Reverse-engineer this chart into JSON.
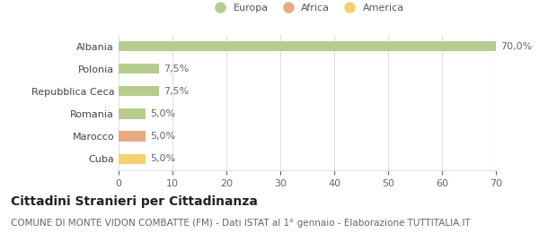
{
  "categories": [
    "Albania",
    "Polonia",
    "Repubblica Ceca",
    "Romania",
    "Marocco",
    "Cuba"
  ],
  "values": [
    70.0,
    7.5,
    7.5,
    5.0,
    5.0,
    5.0
  ],
  "bar_colors": [
    "#b5cc8e",
    "#b5cc8e",
    "#b5cc8e",
    "#b5cc8e",
    "#e8aa80",
    "#f5d06e"
  ],
  "bar_labels": [
    "70,0%",
    "7,5%",
    "7,5%",
    "5,0%",
    "5,0%",
    "5,0%"
  ],
  "legend_labels": [
    "Europa",
    "Africa",
    "America"
  ],
  "legend_colors": [
    "#b5cc8e",
    "#e8aa80",
    "#f5d06e"
  ],
  "title": "Cittadini Stranieri per Cittadinanza",
  "subtitle": "COMUNE DI MONTE VIDON COMBATTE (FM) - Dati ISTAT al 1° gennaio - Elaborazione TUTTITALIA.IT",
  "xlim": [
    0,
    70
  ],
  "xticks": [
    0,
    10,
    20,
    30,
    40,
    50,
    60,
    70
  ],
  "background_color": "#ffffff",
  "grid_color": "#e0e0e0",
  "title_fontsize": 10,
  "subtitle_fontsize": 7.5,
  "label_fontsize": 8,
  "tick_fontsize": 8,
  "bar_height": 0.45
}
